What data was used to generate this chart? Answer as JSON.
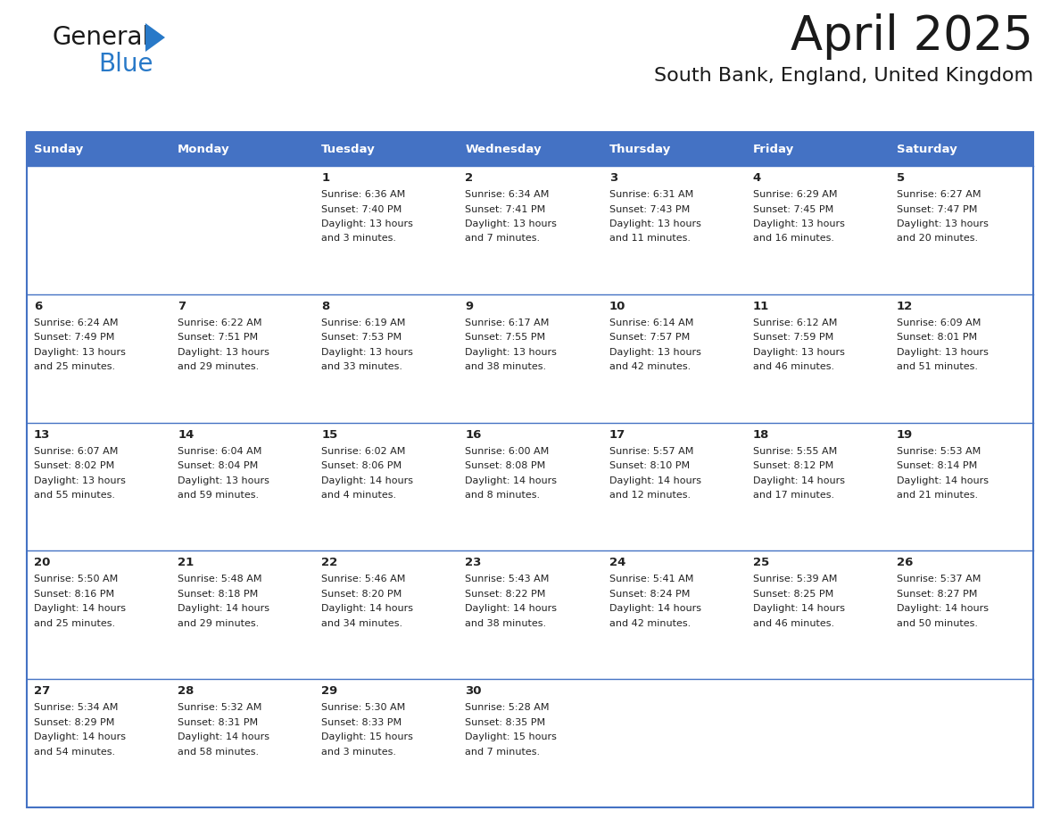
{
  "title": "April 2025",
  "subtitle": "South Bank, England, United Kingdom",
  "header_color": "#4472C4",
  "header_text_color": "#FFFFFF",
  "cell_bg_white": "#FFFFFF",
  "cell_bg_gray": "#F2F2F2",
  "border_color": "#4472C4",
  "text_color": "#222222",
  "day_headers": [
    "Sunday",
    "Monday",
    "Tuesday",
    "Wednesday",
    "Thursday",
    "Friday",
    "Saturday"
  ],
  "days": [
    {
      "day": 1,
      "col": 2,
      "row": 0,
      "sunrise": "6:36 AM",
      "sunset": "7:40 PM",
      "daylight": "13 hours",
      "daylight2": "and 3 minutes."
    },
    {
      "day": 2,
      "col": 3,
      "row": 0,
      "sunrise": "6:34 AM",
      "sunset": "7:41 PM",
      "daylight": "13 hours",
      "daylight2": "and 7 minutes."
    },
    {
      "day": 3,
      "col": 4,
      "row": 0,
      "sunrise": "6:31 AM",
      "sunset": "7:43 PM",
      "daylight": "13 hours",
      "daylight2": "and 11 minutes."
    },
    {
      "day": 4,
      "col": 5,
      "row": 0,
      "sunrise": "6:29 AM",
      "sunset": "7:45 PM",
      "daylight": "13 hours",
      "daylight2": "and 16 minutes."
    },
    {
      "day": 5,
      "col": 6,
      "row": 0,
      "sunrise": "6:27 AM",
      "sunset": "7:47 PM",
      "daylight": "13 hours",
      "daylight2": "and 20 minutes."
    },
    {
      "day": 6,
      "col": 0,
      "row": 1,
      "sunrise": "6:24 AM",
      "sunset": "7:49 PM",
      "daylight": "13 hours",
      "daylight2": "and 25 minutes."
    },
    {
      "day": 7,
      "col": 1,
      "row": 1,
      "sunrise": "6:22 AM",
      "sunset": "7:51 PM",
      "daylight": "13 hours",
      "daylight2": "and 29 minutes."
    },
    {
      "day": 8,
      "col": 2,
      "row": 1,
      "sunrise": "6:19 AM",
      "sunset": "7:53 PM",
      "daylight": "13 hours",
      "daylight2": "and 33 minutes."
    },
    {
      "day": 9,
      "col": 3,
      "row": 1,
      "sunrise": "6:17 AM",
      "sunset": "7:55 PM",
      "daylight": "13 hours",
      "daylight2": "and 38 minutes."
    },
    {
      "day": 10,
      "col": 4,
      "row": 1,
      "sunrise": "6:14 AM",
      "sunset": "7:57 PM",
      "daylight": "13 hours",
      "daylight2": "and 42 minutes."
    },
    {
      "day": 11,
      "col": 5,
      "row": 1,
      "sunrise": "6:12 AM",
      "sunset": "7:59 PM",
      "daylight": "13 hours",
      "daylight2": "and 46 minutes."
    },
    {
      "day": 12,
      "col": 6,
      "row": 1,
      "sunrise": "6:09 AM",
      "sunset": "8:01 PM",
      "daylight": "13 hours",
      "daylight2": "and 51 minutes."
    },
    {
      "day": 13,
      "col": 0,
      "row": 2,
      "sunrise": "6:07 AM",
      "sunset": "8:02 PM",
      "daylight": "13 hours",
      "daylight2": "and 55 minutes."
    },
    {
      "day": 14,
      "col": 1,
      "row": 2,
      "sunrise": "6:04 AM",
      "sunset": "8:04 PM",
      "daylight": "13 hours",
      "daylight2": "and 59 minutes."
    },
    {
      "day": 15,
      "col": 2,
      "row": 2,
      "sunrise": "6:02 AM",
      "sunset": "8:06 PM",
      "daylight": "14 hours",
      "daylight2": "and 4 minutes."
    },
    {
      "day": 16,
      "col": 3,
      "row": 2,
      "sunrise": "6:00 AM",
      "sunset": "8:08 PM",
      "daylight": "14 hours",
      "daylight2": "and 8 minutes."
    },
    {
      "day": 17,
      "col": 4,
      "row": 2,
      "sunrise": "5:57 AM",
      "sunset": "8:10 PM",
      "daylight": "14 hours",
      "daylight2": "and 12 minutes."
    },
    {
      "day": 18,
      "col": 5,
      "row": 2,
      "sunrise": "5:55 AM",
      "sunset": "8:12 PM",
      "daylight": "14 hours",
      "daylight2": "and 17 minutes."
    },
    {
      "day": 19,
      "col": 6,
      "row": 2,
      "sunrise": "5:53 AM",
      "sunset": "8:14 PM",
      "daylight": "14 hours",
      "daylight2": "and 21 minutes."
    },
    {
      "day": 20,
      "col": 0,
      "row": 3,
      "sunrise": "5:50 AM",
      "sunset": "8:16 PM",
      "daylight": "14 hours",
      "daylight2": "and 25 minutes."
    },
    {
      "day": 21,
      "col": 1,
      "row": 3,
      "sunrise": "5:48 AM",
      "sunset": "8:18 PM",
      "daylight": "14 hours",
      "daylight2": "and 29 minutes."
    },
    {
      "day": 22,
      "col": 2,
      "row": 3,
      "sunrise": "5:46 AM",
      "sunset": "8:20 PM",
      "daylight": "14 hours",
      "daylight2": "and 34 minutes."
    },
    {
      "day": 23,
      "col": 3,
      "row": 3,
      "sunrise": "5:43 AM",
      "sunset": "8:22 PM",
      "daylight": "14 hours",
      "daylight2": "and 38 minutes."
    },
    {
      "day": 24,
      "col": 4,
      "row": 3,
      "sunrise": "5:41 AM",
      "sunset": "8:24 PM",
      "daylight": "14 hours",
      "daylight2": "and 42 minutes."
    },
    {
      "day": 25,
      "col": 5,
      "row": 3,
      "sunrise": "5:39 AM",
      "sunset": "8:25 PM",
      "daylight": "14 hours",
      "daylight2": "and 46 minutes."
    },
    {
      "day": 26,
      "col": 6,
      "row": 3,
      "sunrise": "5:37 AM",
      "sunset": "8:27 PM",
      "daylight": "14 hours",
      "daylight2": "and 50 minutes."
    },
    {
      "day": 27,
      "col": 0,
      "row": 4,
      "sunrise": "5:34 AM",
      "sunset": "8:29 PM",
      "daylight": "14 hours",
      "daylight2": "and 54 minutes."
    },
    {
      "day": 28,
      "col": 1,
      "row": 4,
      "sunrise": "5:32 AM",
      "sunset": "8:31 PM",
      "daylight": "14 hours",
      "daylight2": "and 58 minutes."
    },
    {
      "day": 29,
      "col": 2,
      "row": 4,
      "sunrise": "5:30 AM",
      "sunset": "8:33 PM",
      "daylight": "15 hours",
      "daylight2": "and 3 minutes."
    },
    {
      "day": 30,
      "col": 3,
      "row": 4,
      "sunrise": "5:28 AM",
      "sunset": "8:35 PM",
      "daylight": "15 hours",
      "daylight2": "and 7 minutes."
    }
  ],
  "logo_color_general": "#1a1a1a",
  "logo_color_blue": "#2879C8",
  "logo_triangle_color": "#2879C8"
}
